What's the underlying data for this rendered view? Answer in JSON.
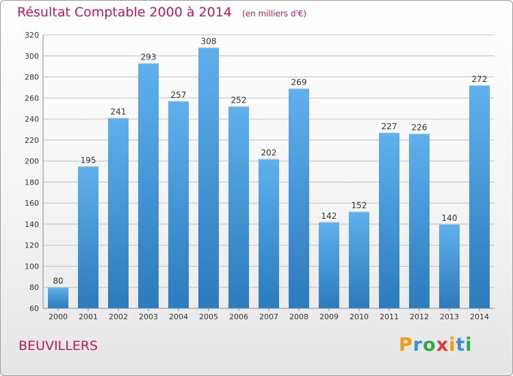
{
  "header": {
    "title": "Résultat Comptable 2000 à 2014",
    "subtitle": "(en milliers d'€)"
  },
  "footer": {
    "city": "BEUVILLERS",
    "logo": "Proxiti",
    "logo_letters": [
      "P",
      "r",
      "o",
      "x",
      "i",
      "t",
      "i"
    ],
    "logo_colors": [
      "#f39c12",
      "#3a8fd6",
      "#2aa84a",
      "#e53935",
      "#f39c12",
      "#3a8fd6",
      "#2aa84a"
    ]
  },
  "colors": {
    "bar_top": "#5fb0ec",
    "bar_bottom": "#2b7bbd",
    "grid": "#bfbfbf",
    "text": "#333333",
    "accent": "#c2185b"
  },
  "chart_data": {
    "type": "bar",
    "categories": [
      "2000",
      "2001",
      "2002",
      "2003",
      "2004",
      "2005",
      "2006",
      "2007",
      "2008",
      "2009",
      "2010",
      "2011",
      "2012",
      "2013",
      "2014"
    ],
    "values": [
      80,
      195,
      241,
      293,
      257,
      308,
      252,
      202,
      269,
      142,
      152,
      227,
      226,
      140,
      272
    ],
    "title": "Résultat Comptable 2000 à 2014",
    "subtitle": "(en milliers d'€)",
    "ylim": [
      60,
      320
    ],
    "yticks": [
      60,
      80,
      100,
      120,
      140,
      160,
      180,
      200,
      220,
      240,
      260,
      280,
      300,
      320
    ],
    "grid": true
  }
}
